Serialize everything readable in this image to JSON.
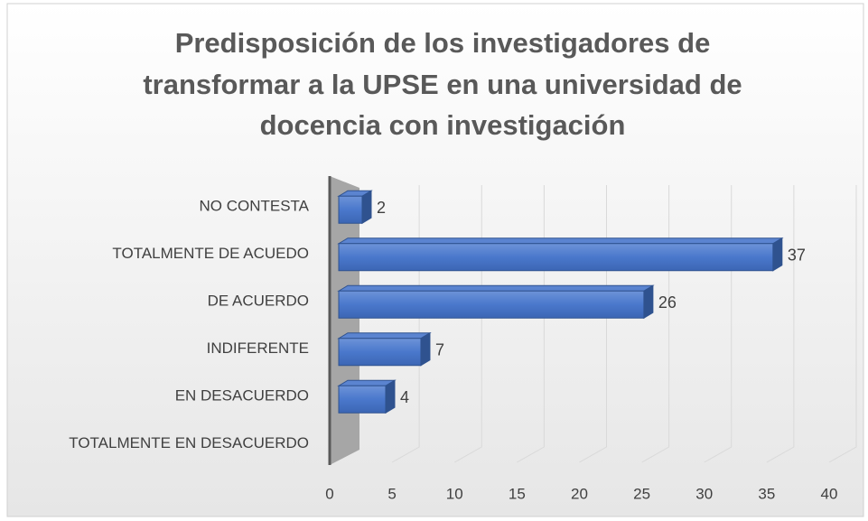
{
  "chart_data": {
    "type": "bar",
    "orientation": "horizontal",
    "title": [
      "Predisposición de los investigadores de",
      "transformar a la UPSE en una universidad de",
      "docencia con investigación"
    ],
    "categories": [
      "NO CONTESTA",
      "TOTALMENTE DE ACUEDO",
      "DE ACUERDO",
      "INDIFERENTE",
      "EN DESACUERDO",
      "TOTALMENTE EN DESACUERDO"
    ],
    "values": [
      2,
      37,
      26,
      7,
      4,
      null
    ],
    "color": "#4472c4",
    "xlim": [
      0,
      40
    ],
    "xticks": [
      0,
      5,
      10,
      15,
      20,
      25,
      30,
      35,
      40
    ],
    "grid": true
  }
}
